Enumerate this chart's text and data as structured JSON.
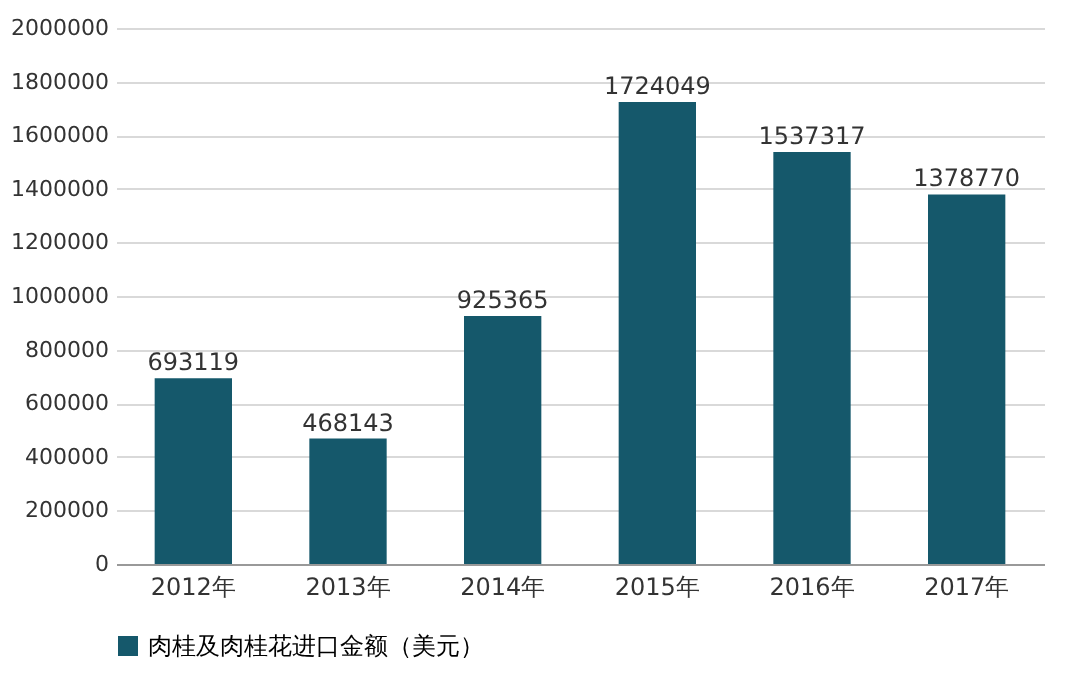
{
  "chart_data": {
    "type": "bar",
    "categories": [
      "2012年",
      "2013年",
      "2014年",
      "2015年",
      "2016年",
      "2017年"
    ],
    "series": [
      {
        "name": "肉桂及肉桂花进口金额（美元）",
        "color": "#15586b",
        "values": [
          693119,
          468143,
          925365,
          1724049,
          1537317,
          1378770
        ]
      }
    ],
    "ylim": [
      0,
      2000000
    ],
    "yticks": [
      0,
      200000,
      400000,
      600000,
      800000,
      1000000,
      1200000,
      1400000,
      1600000,
      1800000,
      2000000
    ],
    "grid": "y",
    "legend": "bottom",
    "data_labels": true
  }
}
